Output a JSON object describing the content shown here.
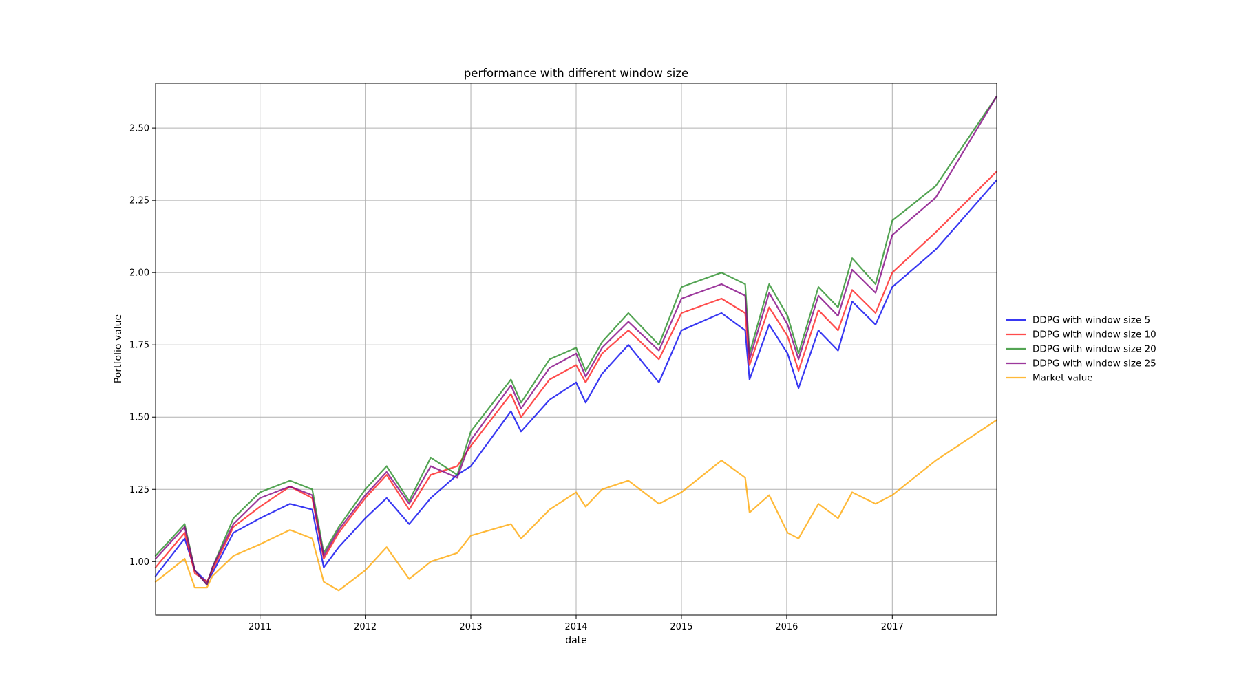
{
  "chart_data": {
    "type": "line",
    "title": "performance with different window size",
    "xlabel": "date",
    "ylabel": "Portfolio value",
    "xlim": [
      "2010-01-04",
      "2017-12-29"
    ],
    "ylim": [
      0.815,
      2.655
    ],
    "x_ticks": [
      "2011",
      "2012",
      "2013",
      "2014",
      "2015",
      "2016",
      "2017"
    ],
    "y_ticks": [
      "1.00",
      "1.25",
      "1.50",
      "1.75",
      "2.00",
      "2.25",
      "2.50"
    ],
    "grid": true,
    "legend_position": "right",
    "x": [
      "2010-01-04",
      "2010-04-15",
      "2010-05-20",
      "2010-07-01",
      "2010-07-20",
      "2010-10-01",
      "2011-01-01",
      "2011-04-15",
      "2011-07-01",
      "2011-08-10",
      "2011-10-01",
      "2012-01-01",
      "2012-03-15",
      "2012-06-01",
      "2012-08-15",
      "2012-11-15",
      "2013-01-01",
      "2013-05-20",
      "2013-06-24",
      "2013-10-01",
      "2014-01-01",
      "2014-02-03",
      "2014-04-01",
      "2014-07-01",
      "2014-10-15",
      "2015-01-01",
      "2015-05-20",
      "2015-08-10",
      "2015-08-25",
      "2015-11-01",
      "2016-01-04",
      "2016-02-11",
      "2016-04-20",
      "2016-06-27",
      "2016-08-15",
      "2016-11-04",
      "2017-01-01",
      "2017-06-01",
      "2017-12-29"
    ],
    "series": [
      {
        "name": "DDPG with window size 5",
        "color": "#0000ee",
        "values": [
          0.95,
          1.08,
          0.97,
          0.93,
          0.96,
          1.1,
          1.15,
          1.2,
          1.18,
          0.98,
          1.05,
          1.15,
          1.22,
          1.13,
          1.22,
          1.3,
          1.33,
          1.52,
          1.45,
          1.56,
          1.62,
          1.55,
          1.65,
          1.75,
          1.62,
          1.8,
          1.86,
          1.8,
          1.63,
          1.82,
          1.72,
          1.6,
          1.8,
          1.73,
          1.9,
          1.82,
          1.95,
          2.08,
          2.32
        ]
      },
      {
        "name": "DDPG with window size 10",
        "color": "#ff1a1a",
        "values": [
          0.98,
          1.1,
          0.96,
          0.93,
          0.97,
          1.12,
          1.19,
          1.26,
          1.22,
          1.01,
          1.1,
          1.22,
          1.3,
          1.18,
          1.3,
          1.33,
          1.4,
          1.58,
          1.5,
          1.63,
          1.68,
          1.62,
          1.72,
          1.8,
          1.7,
          1.86,
          1.91,
          1.86,
          1.68,
          1.88,
          1.78,
          1.66,
          1.87,
          1.8,
          1.94,
          1.86,
          2.0,
          2.14,
          2.35
        ]
      },
      {
        "name": "DDPG with window size 20",
        "color": "#228b22",
        "values": [
          1.02,
          1.13,
          0.97,
          0.92,
          0.98,
          1.15,
          1.24,
          1.28,
          1.25,
          1.03,
          1.12,
          1.25,
          1.33,
          1.21,
          1.36,
          1.3,
          1.45,
          1.63,
          1.55,
          1.7,
          1.74,
          1.66,
          1.76,
          1.86,
          1.75,
          1.95,
          2.0,
          1.96,
          1.72,
          1.96,
          1.85,
          1.72,
          1.95,
          1.88,
          2.05,
          1.96,
          2.18,
          2.3,
          2.61
        ]
      },
      {
        "name": "DDPG with window size 25",
        "color": "#800080",
        "values": [
          1.01,
          1.12,
          0.97,
          0.92,
          0.98,
          1.13,
          1.22,
          1.26,
          1.23,
          1.02,
          1.11,
          1.23,
          1.31,
          1.2,
          1.33,
          1.29,
          1.42,
          1.61,
          1.53,
          1.67,
          1.72,
          1.64,
          1.74,
          1.83,
          1.73,
          1.91,
          1.96,
          1.92,
          1.7,
          1.93,
          1.82,
          1.7,
          1.92,
          1.85,
          2.01,
          1.93,
          2.13,
          2.26,
          2.61
        ]
      },
      {
        "name": "Market value",
        "color": "#ffa500",
        "values": [
          0.93,
          1.01,
          0.91,
          0.91,
          0.95,
          1.02,
          1.06,
          1.11,
          1.08,
          0.93,
          0.9,
          0.97,
          1.05,
          0.94,
          1.0,
          1.03,
          1.09,
          1.13,
          1.08,
          1.18,
          1.24,
          1.19,
          1.25,
          1.28,
          1.2,
          1.24,
          1.35,
          1.29,
          1.17,
          1.23,
          1.1,
          1.08,
          1.2,
          1.15,
          1.24,
          1.2,
          1.23,
          1.35,
          1.49
        ]
      }
    ]
  }
}
